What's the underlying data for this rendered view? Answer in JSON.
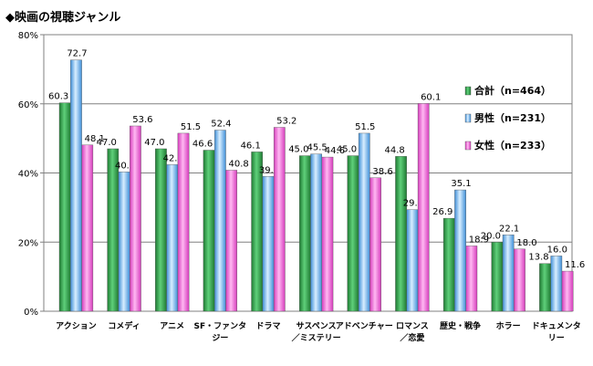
{
  "chart_data": {
    "type": "bar",
    "title": "◆映画の視聴ジャンル",
    "xlabel": "",
    "ylabel": "",
    "ylim": [
      0,
      80
    ],
    "yticks": [
      "0%",
      "20%",
      "40%",
      "60%",
      "80%"
    ],
    "grid": true,
    "legend_position": "right",
    "categories": [
      [
        "アクション"
      ],
      [
        "コメディ"
      ],
      [
        "アニメ"
      ],
      [
        "SF・ファンタ",
        "ジー"
      ],
      [
        "ドラマ"
      ],
      [
        "サスペンス",
        "／ミステリー"
      ],
      [
        "アドベンチャー"
      ],
      [
        "ロマンス",
        "／恋愛"
      ],
      [
        "歴史・戦争"
      ],
      [
        "ホラー"
      ],
      [
        "ドキュメンタ",
        "リー"
      ]
    ],
    "series": [
      {
        "name": "合計（n=464）",
        "color": "#2e9e46",
        "values": [
          60.3,
          47.0,
          47.0,
          46.6,
          46.1,
          45.0,
          45.0,
          44.8,
          26.9,
          20.0,
          13.8
        ]
      },
      {
        "name": "男性（n=231）",
        "color": "#6ab4f2",
        "values": [
          72.7,
          40.3,
          42.4,
          52.4,
          39.0,
          45.5,
          51.5,
          29.4,
          35.1,
          22.1,
          16.0
        ]
      },
      {
        "name": "女性（n=233）",
        "color": "#f05ad6",
        "values": [
          48.1,
          53.6,
          51.5,
          40.8,
          53.2,
          44.6,
          38.6,
          60.1,
          18.9,
          18.0,
          11.6
        ]
      }
    ]
  }
}
